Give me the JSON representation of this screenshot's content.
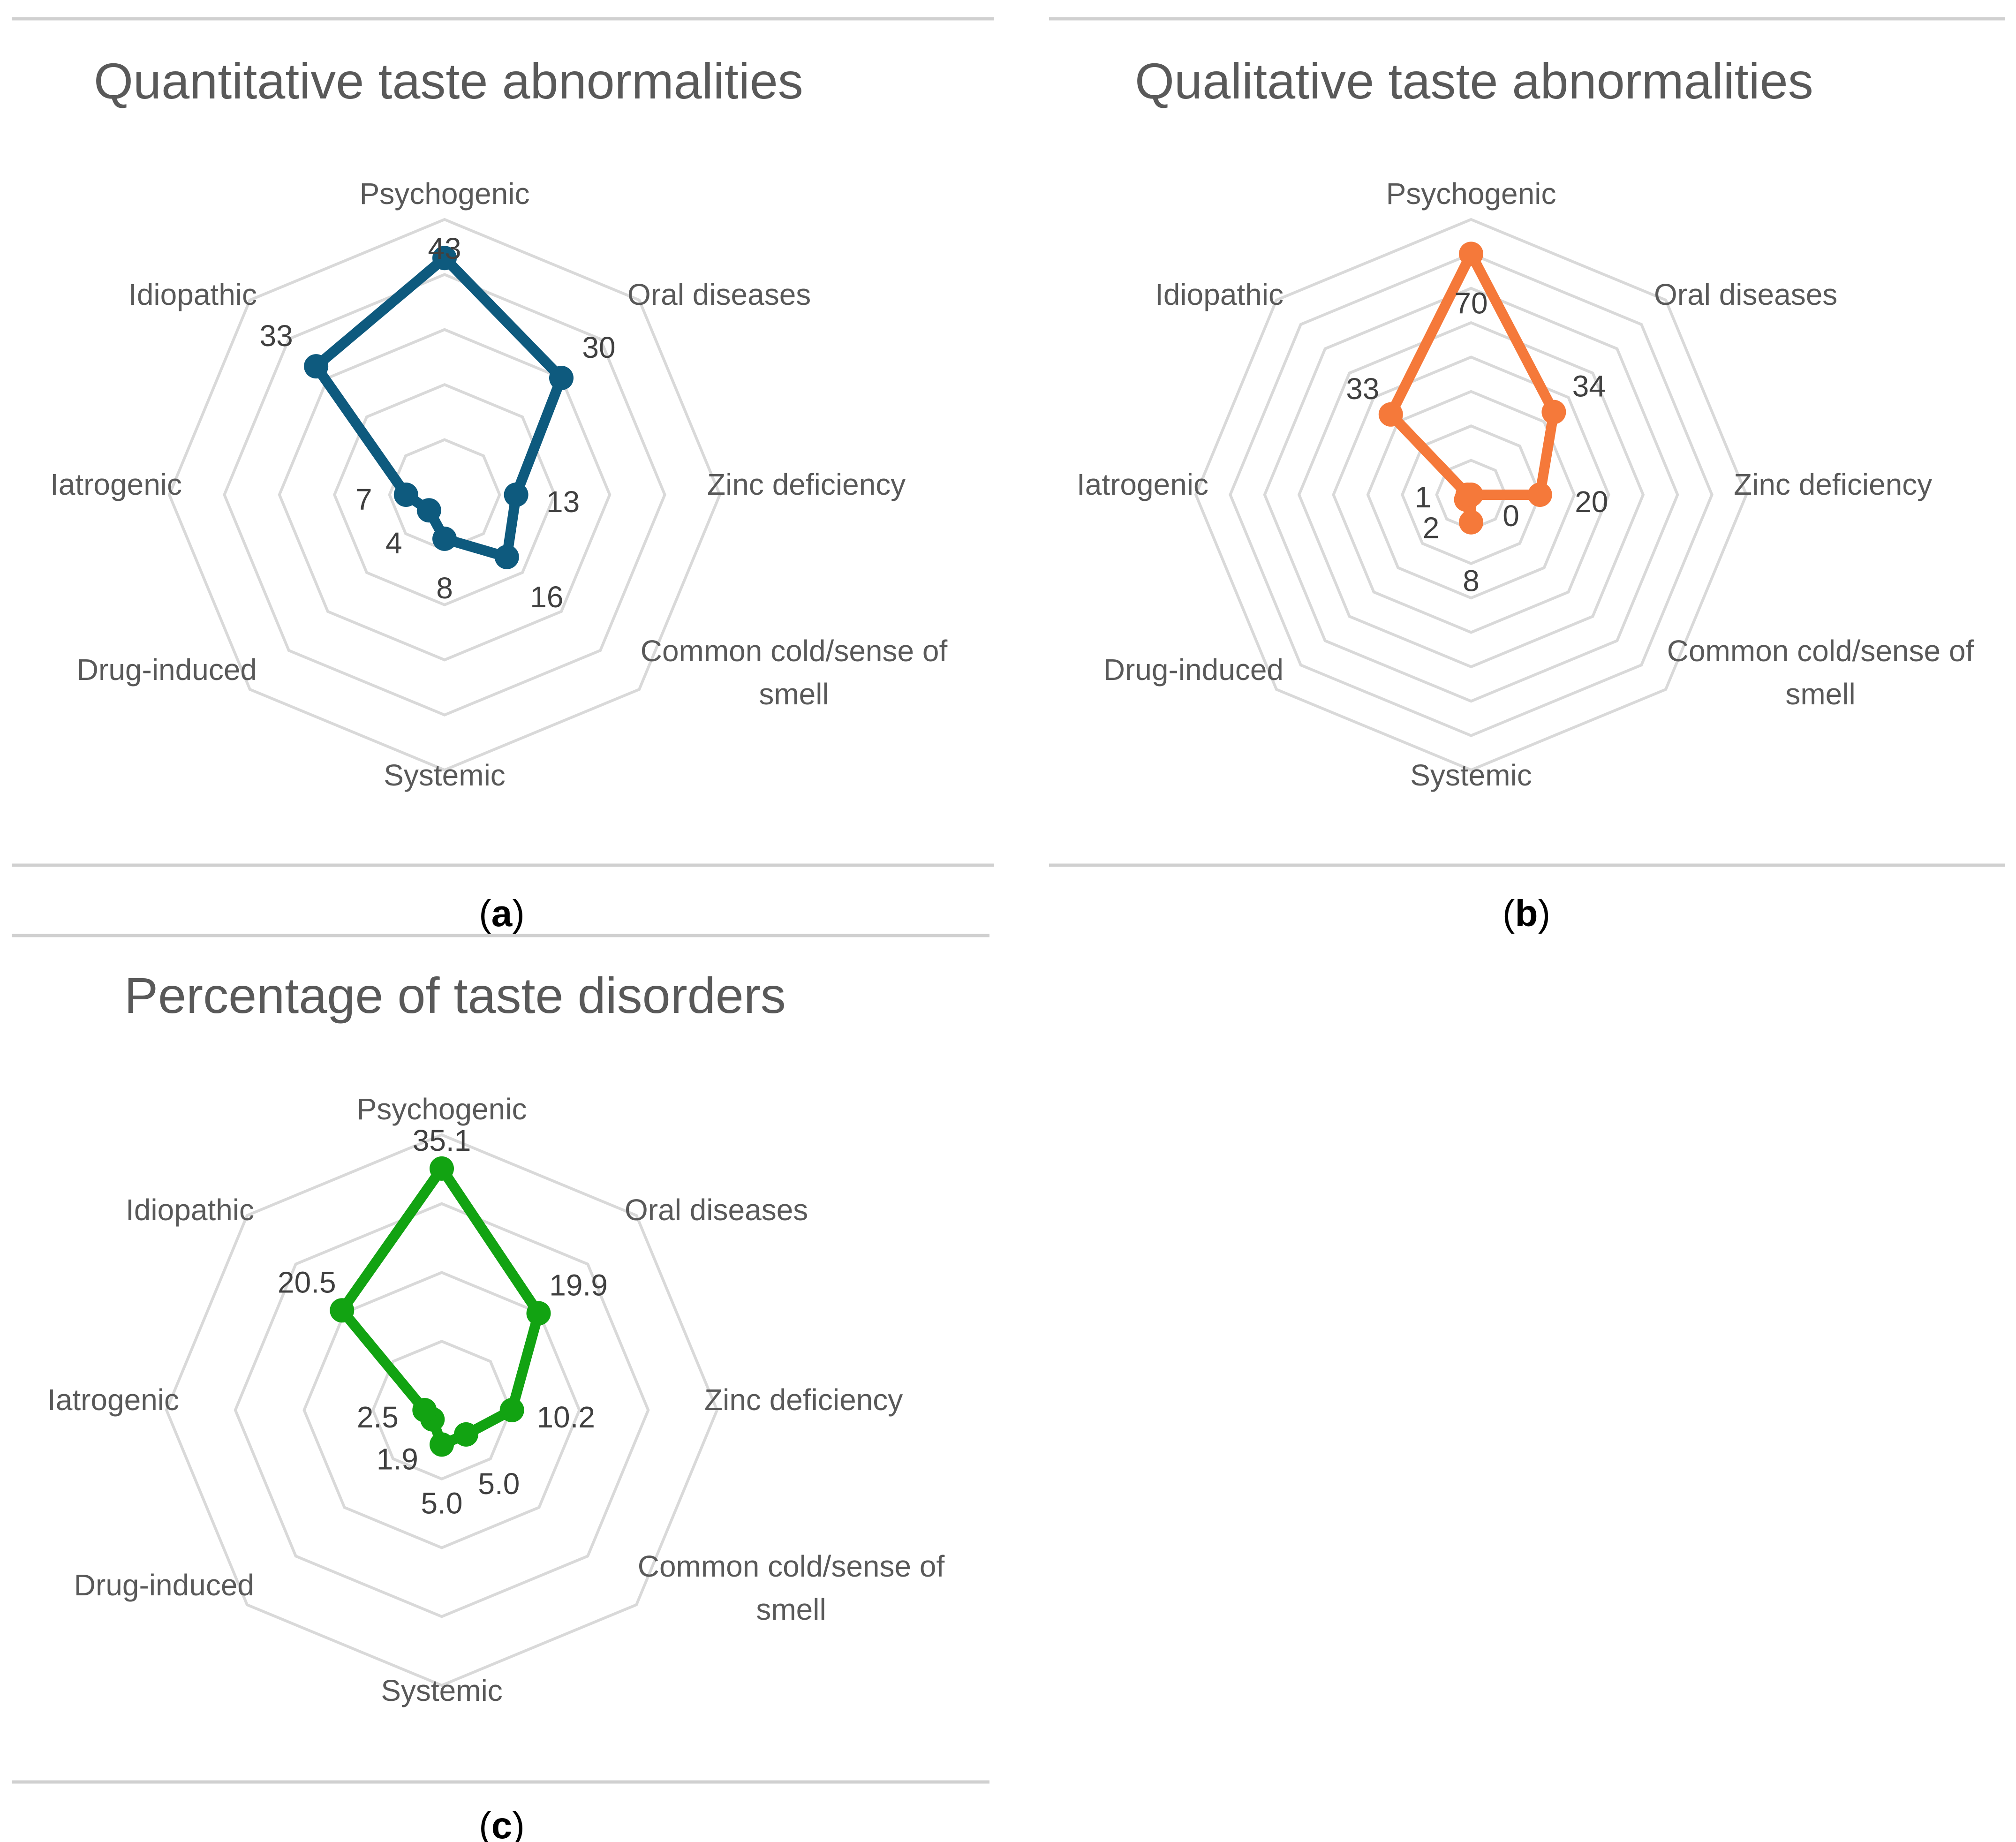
{
  "colors": {
    "panel_a": "#0e5a7e",
    "panel_b": "#f5793a",
    "panel_c": "#12a312",
    "grid": "#d9d9d9",
    "text": "#595959"
  },
  "chart_data": [
    {
      "type": "radar",
      "panel_label": "a",
      "title": "Quantitative taste abnormalities",
      "categories": [
        "Psychogenic",
        "Oral diseases",
        "Zinc deficiency",
        "Common cold/sense of smell",
        "Systemic",
        "Drug-induced",
        "Iatrogenic",
        "Idiopathic"
      ],
      "category_lines": [
        [
          "Psychogenic"
        ],
        [
          "Oral diseases"
        ],
        [
          "Zinc deficiency"
        ],
        [
          "Common cold/sense of",
          "smell"
        ],
        [
          "Systemic"
        ],
        [
          "Drug-induced"
        ],
        [
          "Iatrogenic"
        ],
        [
          "Idiopathic"
        ]
      ],
      "values": [
        43,
        30,
        13,
        16,
        8,
        4,
        7,
        33
      ],
      "data_labels": [
        "43",
        "30",
        "13",
        "16",
        "8",
        "4",
        "7",
        "33"
      ],
      "rmax": 50,
      "gridlines": 5,
      "color_key": "panel_a"
    },
    {
      "type": "radar",
      "panel_label": "b",
      "title": "Qualitative taste abnormalities",
      "categories": [
        "Psychogenic",
        "Oral diseases",
        "Zinc deficiency",
        "Common cold/sense of smell",
        "Systemic",
        "Drug-induced",
        "Iatrogenic",
        "Idiopathic"
      ],
      "category_lines": [
        [
          "Psychogenic"
        ],
        [
          "Oral diseases"
        ],
        [
          "Zinc deficiency"
        ],
        [
          "Common cold/sense of",
          "smell"
        ],
        [
          "Systemic"
        ],
        [
          "Drug-induced"
        ],
        [
          "Iatrogenic"
        ],
        [
          "Idiopathic"
        ]
      ],
      "values": [
        70,
        34,
        20,
        0,
        8,
        2,
        1,
        33
      ],
      "data_labels": [
        "70",
        "34",
        "20",
        "0",
        "8",
        "2",
        "1",
        "33"
      ],
      "rmax": 80,
      "gridlines": 8,
      "color_key": "panel_b"
    },
    {
      "type": "radar",
      "panel_label": "c",
      "title": "Percentage of taste disorders",
      "categories": [
        "Psychogenic",
        "Oral diseases",
        "Zinc deficiency",
        "Common cold/sense of smell",
        "Systemic",
        "Drug-induced",
        "Iatrogenic",
        "Idiopathic"
      ],
      "category_lines": [
        [
          "Psychogenic"
        ],
        [
          "Oral diseases"
        ],
        [
          "Zinc deficiency"
        ],
        [
          "Common cold/sense of",
          "smell"
        ],
        [
          "Systemic"
        ],
        [
          "Drug-induced"
        ],
        [
          "Iatrogenic"
        ],
        [
          "Idiopathic"
        ]
      ],
      "values": [
        35.1,
        19.9,
        10.2,
        5.0,
        5.0,
        1.9,
        2.5,
        20.5
      ],
      "data_labels": [
        "35.1",
        "19.9",
        "10.2",
        "5.0",
        "5.0",
        "1.9",
        "2.5",
        "20.5"
      ],
      "rmax": 40,
      "gridlines": 4,
      "color_key": "panel_c"
    }
  ]
}
